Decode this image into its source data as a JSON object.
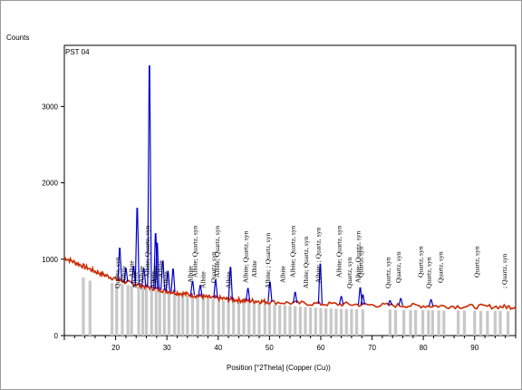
{
  "chart_data": {
    "type": "line",
    "title": "",
    "sample_label": "PST 04",
    "xlabel": "Position [°2Theta] (Copper (Cu))",
    "ylabel": "Counts",
    "xlim": [
      10,
      98
    ],
    "ylim": [
      0,
      3800
    ],
    "x_ticks": [
      20,
      30,
      40,
      50,
      60,
      70,
      80,
      90
    ],
    "y_ticks": [
      0,
      1000,
      2000,
      3000
    ],
    "grid": false,
    "series": [
      {
        "color": "#cc2a00",
        "x": [
          10,
          12,
          14,
          16,
          18,
          20,
          22,
          24,
          26,
          28,
          30,
          32,
          34,
          36,
          38,
          40,
          42,
          44,
          46,
          48,
          50,
          55,
          60,
          65,
          70,
          75,
          80,
          85,
          90,
          95,
          98
        ],
        "values": [
          1020,
          960,
          900,
          840,
          790,
          740,
          700,
          670,
          640,
          610,
          585,
          560,
          540,
          520,
          500,
          490,
          475,
          465,
          455,
          450,
          440,
          425,
          415,
          410,
          400,
          395,
          390,
          385,
          380,
          378,
          375
        ]
      },
      {
        "color": "#0000cc",
        "x": [
          20.8,
          22.0,
          23.5,
          24.2,
          25.5,
          26.6,
          27.8,
          28.1,
          29.2,
          30.2,
          31.2,
          35.0,
          36.5,
          39.5,
          42.4,
          45.8,
          50.1,
          55.0,
          59.9,
          64.0,
          67.7,
          68.2,
          73.5,
          75.6,
          81.5
        ],
        "values": [
          420,
          180,
          230,
          1000,
          230,
          2900,
          720,
          600,
          380,
          260,
          300,
          180,
          140,
          230,
          420,
          160,
          260,
          140,
          520,
          100,
          220,
          130,
          60,
          90,
          80
        ]
      }
    ],
    "reference_peaks": [
      {
        "x": 20.8,
        "label": "Quartz, syn"
      },
      {
        "x": 22.0,
        "label": "Albite"
      },
      {
        "x": 23.5,
        "label": "Albite"
      },
      {
        "x": 24.2,
        "label": "Albite"
      },
      {
        "x": 25.5,
        "label": "Albite"
      },
      {
        "x": 26.6,
        "label": "Albite; Quartz, syn"
      },
      {
        "x": 27.8,
        "label": "Albite"
      },
      {
        "x": 28.1,
        "label": "Albite"
      },
      {
        "x": 29.2,
        "label": "Albite"
      },
      {
        "x": 30.2,
        "label": "Albite"
      },
      {
        "x": 35.0,
        "label": "Albite"
      },
      {
        "x": 35.9,
        "label": "Albite; Quartz, syn"
      },
      {
        "x": 37.5,
        "label": "Albite"
      },
      {
        "x": 39.5,
        "label": "Quartz, syn"
      },
      {
        "x": 40.2,
        "label": "Albite; Quartz, syn"
      },
      {
        "x": 42.4,
        "label": "Albite"
      },
      {
        "x": 45.8,
        "label": "Albite; Quartz, syn"
      },
      {
        "x": 47.5,
        "label": "Albite"
      },
      {
        "x": 50.1,
        "label": "Albite; ; Quartz, syn"
      },
      {
        "x": 53.0,
        "label": "Albite"
      },
      {
        "x": 55.0,
        "label": "Albite; Quartz, syn"
      },
      {
        "x": 57.5,
        "label": "Albite; Quartz, syn"
      },
      {
        "x": 59.9,
        "label": "Albite; ; Quartz, syn"
      },
      {
        "x": 64.0,
        "label": "Albite; Quartz, syn"
      },
      {
        "x": 66.0,
        "label": "Quartz, syn"
      },
      {
        "x": 67.7,
        "label": "Albite; Quartz, syn"
      },
      {
        "x": 68.2,
        "label": "Quartz, syn"
      },
      {
        "x": 73.5,
        "label": "Quartz, syn"
      },
      {
        "x": 75.6,
        "label": "Quartz, syn"
      },
      {
        "x": 79.9,
        "label": "Quartz, syn"
      },
      {
        "x": 81.5,
        "label": "Quartz, syn"
      },
      {
        "x": 83.8,
        "label": "Quartz, syn"
      },
      {
        "x": 90.8,
        "label": "Quartz, syn"
      },
      {
        "x": 96.2,
        "label": "; Quartz, syn"
      }
    ],
    "reference_bars_color": "#c8c8c8",
    "reference_bars": [
      {
        "x": 13.7,
        "values": 760
      },
      {
        "x": 15.0,
        "values": 720
      },
      {
        "x": 19.3,
        "values": 690
      },
      {
        "x": 20.2,
        "values": 680
      },
      {
        "x": 21.3,
        "values": 670
      },
      {
        "x": 22.4,
        "values": 660
      },
      {
        "x": 23.1,
        "values": 650
      },
      {
        "x": 24.5,
        "values": 640
      },
      {
        "x": 25.3,
        "values": 630
      },
      {
        "x": 26.0,
        "values": 620
      },
      {
        "x": 27.0,
        "values": 610
      },
      {
        "x": 27.9,
        "values": 600
      },
      {
        "x": 28.6,
        "values": 590
      },
      {
        "x": 29.5,
        "values": 580
      },
      {
        "x": 30.4,
        "values": 570
      },
      {
        "x": 31.5,
        "values": 560
      },
      {
        "x": 32.3,
        "values": 550
      },
      {
        "x": 33.1,
        "values": 540
      },
      {
        "x": 34.0,
        "values": 530
      },
      {
        "x": 35.0,
        "values": 520
      },
      {
        "x": 36.0,
        "values": 510
      },
      {
        "x": 37.1,
        "values": 500
      },
      {
        "x": 38.0,
        "values": 490
      },
      {
        "x": 39.0,
        "values": 480
      },
      {
        "x": 40.1,
        "values": 470
      },
      {
        "x": 41.0,
        "values": 460
      },
      {
        "x": 42.0,
        "values": 450
      },
      {
        "x": 43.0,
        "values": 445
      },
      {
        "x": 44.0,
        "values": 440
      },
      {
        "x": 45.0,
        "values": 435
      },
      {
        "x": 46.0,
        "values": 430
      },
      {
        "x": 47.0,
        "values": 425
      },
      {
        "x": 48.0,
        "values": 420
      },
      {
        "x": 49.1,
        "values": 415
      },
      {
        "x": 50.0,
        "values": 410
      },
      {
        "x": 51.0,
        "values": 405
      },
      {
        "x": 52.0,
        "values": 400
      },
      {
        "x": 53.0,
        "values": 395
      },
      {
        "x": 54.0,
        "values": 390
      },
      {
        "x": 55.0,
        "values": 385
      },
      {
        "x": 56.0,
        "values": 380
      },
      {
        "x": 57.0,
        "values": 375
      },
      {
        "x": 58.0,
        "values": 370
      },
      {
        "x": 59.0,
        "values": 365
      },
      {
        "x": 60.0,
        "values": 360
      },
      {
        "x": 61.0,
        "values": 358
      },
      {
        "x": 62.0,
        "values": 355
      },
      {
        "x": 63.0,
        "values": 352
      },
      {
        "x": 64.0,
        "values": 350
      },
      {
        "x": 65.0,
        "values": 348
      },
      {
        "x": 66.0,
        "values": 346
      },
      {
        "x": 67.0,
        "values": 344
      },
      {
        "x": 68.2,
        "values": 342
      },
      {
        "x": 73.5,
        "values": 340
      },
      {
        "x": 74.6,
        "values": 338
      },
      {
        "x": 76.2,
        "values": 336
      },
      {
        "x": 77.5,
        "values": 335
      },
      {
        "x": 78.5,
        "values": 334
      },
      {
        "x": 79.9,
        "values": 333
      },
      {
        "x": 81.0,
        "values": 332
      },
      {
        "x": 81.8,
        "values": 331
      },
      {
        "x": 83.0,
        "values": 330
      },
      {
        "x": 84.0,
        "values": 329
      },
      {
        "x": 86.8,
        "values": 328
      },
      {
        "x": 88.0,
        "values": 327
      },
      {
        "x": 90.0,
        "values": 326
      },
      {
        "x": 91.2,
        "values": 325
      },
      {
        "x": 92.5,
        "values": 324
      },
      {
        "x": 94.0,
        "values": 323
      },
      {
        "x": 95.0,
        "values": 322
      },
      {
        "x": 96.5,
        "values": 321
      }
    ]
  }
}
